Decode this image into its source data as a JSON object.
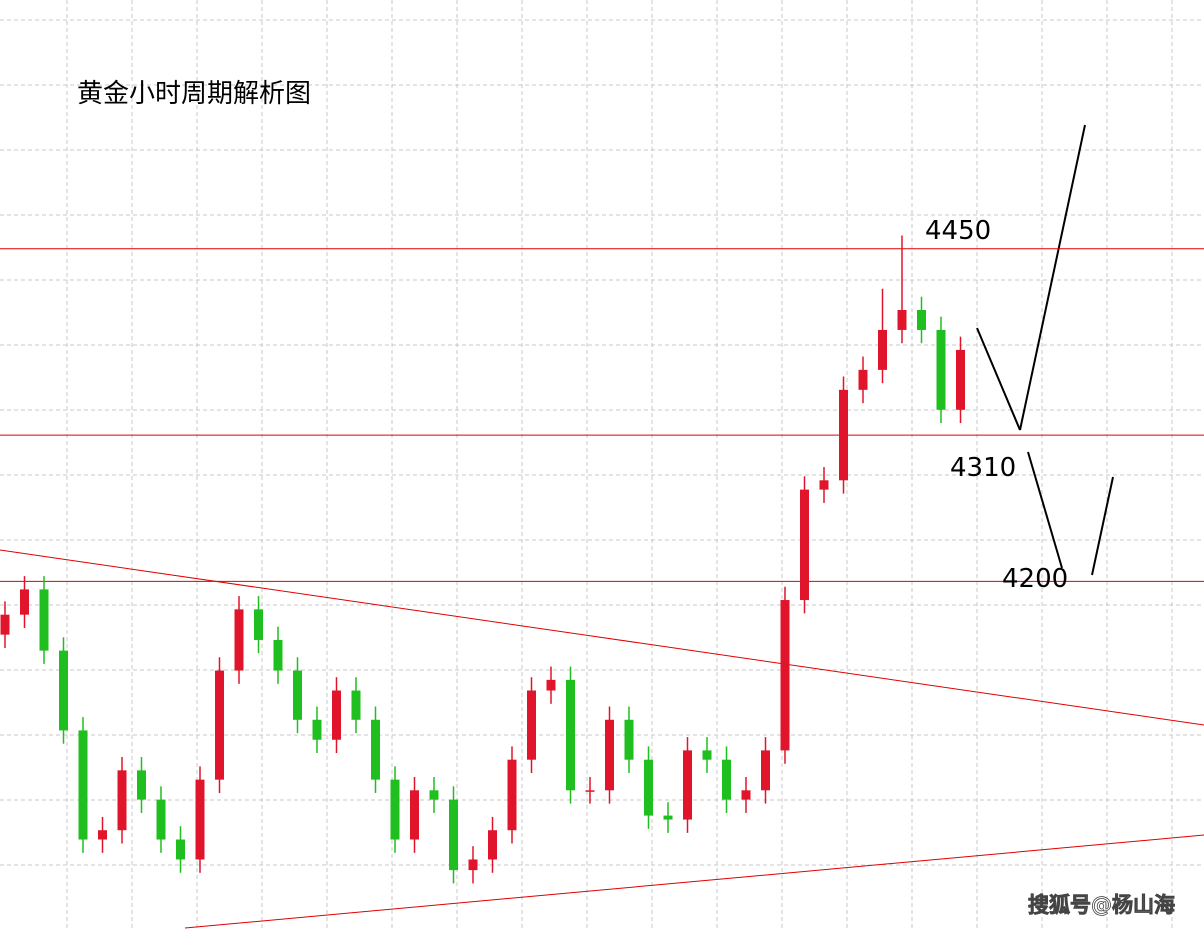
{
  "chart_data": {
    "type": "candlestick",
    "title": "黄金小时周期解析图",
    "ylim": [
      3938,
      4637
    ],
    "levels": [
      4450,
      4310,
      4200
    ],
    "up_color": "#e0142a",
    "down_color": "#1fbf1f",
    "level_color": "#e00000",
    "open": [
      4160,
      4175,
      4194,
      4148,
      4088,
      4006,
      4013,
      4058,
      4036,
      4006,
      3991,
      4051,
      4133,
      4179,
      4156,
      4133,
      4096,
      4081,
      4118,
      4096,
      4051,
      4006,
      4043,
      4036,
      3983,
      3991,
      4013,
      4066,
      4118,
      4126,
      4043,
      4043,
      4096,
      4066,
      4024,
      4021,
      4073,
      4066,
      4036,
      4043,
      4073,
      4186,
      4269,
      4276,
      4344,
      4359,
      4389,
      4404,
      4389,
      4329
    ],
    "high": [
      4185,
      4204,
      4204,
      4158,
      4098,
      4023,
      4068,
      4068,
      4046,
      4016,
      4061,
      4143,
      4189,
      4189,
      4166,
      4143,
      4106,
      4128,
      4128,
      4106,
      4061,
      4053,
      4053,
      4046,
      4001,
      4023,
      4076,
      4128,
      4136,
      4136,
      4053,
      4106,
      4106,
      4076,
      4034,
      4083,
      4083,
      4076,
      4053,
      4083,
      4196,
      4279,
      4286,
      4354,
      4369,
      4420,
      4460,
      4414,
      4399,
      4384
    ],
    "low": [
      4150,
      4165,
      4138,
      4078,
      3996,
      3996,
      4003,
      4026,
      3996,
      3981,
      3981,
      4041,
      4123,
      4146,
      4123,
      4086,
      4071,
      4071,
      4086,
      4041,
      3996,
      3996,
      4026,
      3973,
      3973,
      3981,
      4003,
      4056,
      4108,
      4033,
      4033,
      4033,
      4056,
      4014,
      4011,
      4011,
      4056,
      4026,
      4026,
      4033,
      4063,
      4176,
      4259,
      4266,
      4334,
      4349,
      4379,
      4379,
      4319,
      4319
    ],
    "close": [
      4175,
      4194,
      4148,
      4088,
      4006,
      4013,
      4058,
      4036,
      4006,
      3991,
      4051,
      4133,
      4179,
      4156,
      4133,
      4096,
      4081,
      4118,
      4096,
      4051,
      4006,
      4043,
      4036,
      3983,
      3991,
      4013,
      4066,
      4118,
      4126,
      4043,
      4043,
      4096,
      4066,
      4024,
      4021,
      4073,
      4066,
      4036,
      4043,
      4073,
      4186,
      4269,
      4276,
      4344,
      4359,
      4389,
      4404,
      4389,
      4329,
      4374
    ],
    "source": "搜狐号@杨山海"
  }
}
